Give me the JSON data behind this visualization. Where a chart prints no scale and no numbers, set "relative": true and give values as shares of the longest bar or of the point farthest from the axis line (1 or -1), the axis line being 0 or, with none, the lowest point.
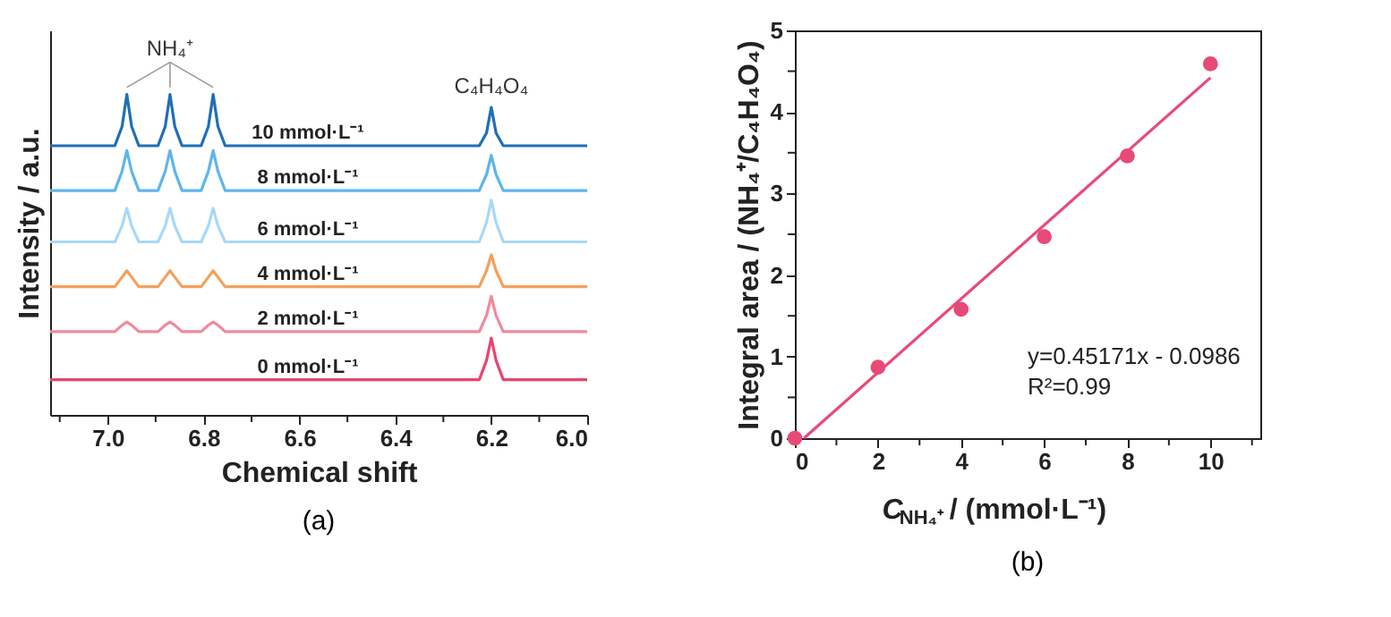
{
  "chart_data": [
    {
      "type": "line",
      "relative": true,
      "xlabel": "Chemical shift",
      "ylabel": "Intensity / a.u.",
      "tick_labels": "x",
      "x": [
        7.12,
        6.985,
        6.97,
        6.96,
        6.95,
        6.935,
        6.895,
        6.88,
        6.87,
        6.86,
        6.845,
        6.805,
        6.79,
        6.78,
        6.77,
        6.755,
        6.225,
        6.21,
        6.2,
        6.19,
        6.175,
        6.0
      ],
      "xlim": [
        7.12,
        6.0
      ],
      "xticks": [
        {
          "value": 7.1,
          "label": null
        },
        {
          "value": 7,
          "label": "7.0"
        },
        {
          "value": 6.9,
          "label": null
        },
        6.8,
        {
          "value": 6.7,
          "label": null
        },
        6.6,
        {
          "value": 6.5,
          "label": null
        },
        6.4,
        {
          "value": 6.3,
          "label": null
        },
        6.2,
        {
          "value": 6.1,
          "label": null
        },
        {
          "value": 6,
          "label": "6.0"
        }
      ],
      "series": [
        {
          "name": "10 mmol·L⁻¹",
          "color": "#1f6fb4",
          "values": [
            0.84,
            0.84,
            0.9,
            1.0,
            0.9,
            0.84,
            0.84,
            0.9,
            1.0,
            0.9,
            0.84,
            0.84,
            0.9,
            1.0,
            0.9,
            0.84,
            0.84,
            0.88,
            0.96,
            0.88,
            0.84,
            0.84
          ]
        },
        {
          "name": "8 mmol·L⁻¹",
          "color": "#5fb5ec",
          "values": [
            0.7,
            0.7,
            0.76,
            0.825,
            0.76,
            0.7,
            0.7,
            0.76,
            0.825,
            0.76,
            0.7,
            0.7,
            0.76,
            0.825,
            0.76,
            0.7,
            0.7,
            0.75,
            0.81,
            0.75,
            0.7,
            0.7
          ]
        },
        {
          "name": "6 mmol·L⁻¹",
          "color": "#a8d8f8",
          "values": [
            0.54,
            0.54,
            0.59,
            0.645,
            0.59,
            0.54,
            0.54,
            0.59,
            0.645,
            0.59,
            0.54,
            0.54,
            0.59,
            0.645,
            0.59,
            0.54,
            0.54,
            0.6,
            0.67,
            0.6,
            0.54,
            0.54
          ]
        },
        {
          "name": "4 mmol·L⁻¹",
          "color": "#f5a05a",
          "values": [
            0.4,
            0.4,
            0.43,
            0.45,
            0.43,
            0.4,
            0.4,
            0.43,
            0.45,
            0.43,
            0.4,
            0.4,
            0.43,
            0.45,
            0.43,
            0.4,
            0.4,
            0.45,
            0.5,
            0.45,
            0.4,
            0.4
          ]
        },
        {
          "name": "2 mmol·L⁻¹",
          "color": "#f08a9a",
          "values": [
            0.26,
            0.26,
            0.28,
            0.29,
            0.28,
            0.26,
            0.26,
            0.28,
            0.29,
            0.28,
            0.26,
            0.26,
            0.28,
            0.29,
            0.28,
            0.26,
            0.26,
            0.31,
            0.37,
            0.31,
            0.26,
            0.26
          ]
        },
        {
          "name": "0 mmol·L⁻¹",
          "color": "#e8456e",
          "values": [
            0.11,
            0.11,
            0.11,
            0.11,
            0.11,
            0.11,
            0.11,
            0.11,
            0.11,
            0.11,
            0.11,
            0.11,
            0.11,
            0.11,
            0.11,
            0.11,
            0.11,
            0.17,
            0.24,
            0.17,
            0.11,
            0.11
          ]
        }
      ],
      "annotations": [
        "NH₄⁺",
        "C₄H₄O₄",
        "(a)"
      ]
    },
    {
      "type": "scatter",
      "xlabel": "C$_{NH₄⁺}$ / (mmol·L⁻¹)",
      "ylabel": "Integral area / (NH₄⁺/C₄H₄O₄)",
      "xlim": [
        0,
        11.2
      ],
      "ylim": [
        0,
        5
      ],
      "xticks": [
        0,
        {
          "value": 1,
          "label": null
        },
        2,
        {
          "value": 3,
          "label": null
        },
        4,
        {
          "value": 5,
          "label": null
        },
        6,
        {
          "value": 7,
          "label": null
        },
        8,
        {
          "value": 9,
          "label": null
        },
        10,
        {
          "value": 11,
          "label": null
        }
      ],
      "yticks": [
        0,
        {
          "value": 0.5,
          "label": null
        },
        1,
        {
          "value": 1.5,
          "label": null
        },
        2,
        {
          "value": 2.5,
          "label": null
        },
        3,
        {
          "value": 3.5,
          "label": null
        },
        4,
        {
          "value": 4.5,
          "label": null
        },
        5
      ],
      "series": [
        {
          "type": "scatter",
          "marker": "circle",
          "color": "#e84a78",
          "x": [
            0,
            2,
            4,
            6,
            8,
            10
          ],
          "values": [
            0,
            0.87,
            1.58,
            2.47,
            3.46,
            4.59
          ]
        },
        {
          "type": "line",
          "color": "#e84a78",
          "x": [
            0.22,
            10
          ],
          "values": [
            0,
            4.42
          ]
        }
      ],
      "annotations": [
        "y=0.45171x - 0.0986",
        "R²=0.99",
        "(b)"
      ]
    }
  ]
}
